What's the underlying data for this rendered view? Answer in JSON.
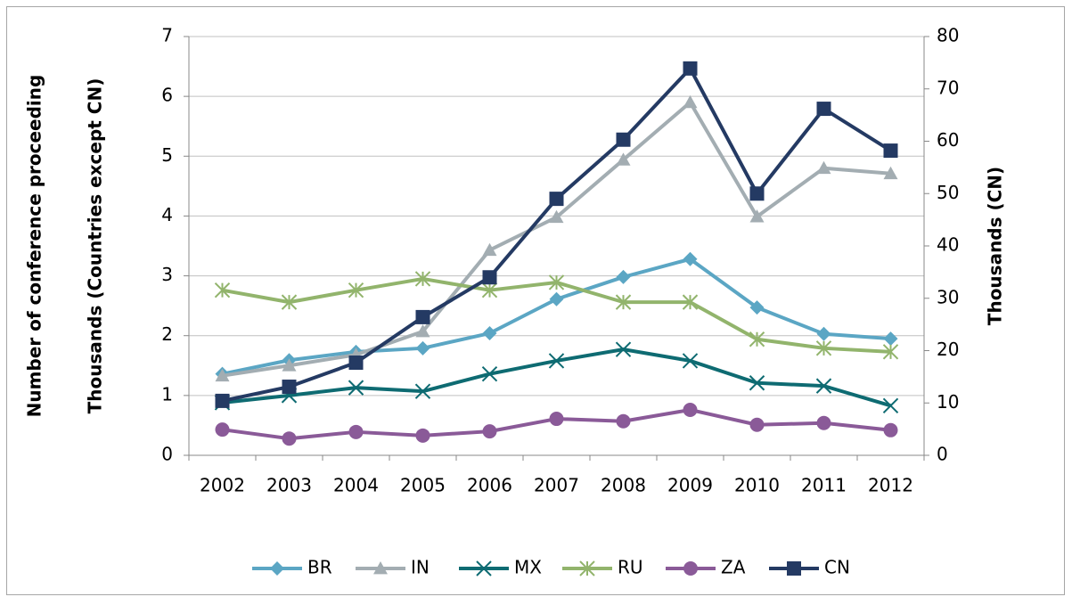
{
  "chart_data": {
    "type": "line",
    "y_label_lines": [
      "Number of conference proceeding",
      "Thousands (Countries except CN)"
    ],
    "y2_label": "Thousands (CN)",
    "categories": [
      "2002",
      "2003",
      "2004",
      "2005",
      "2006",
      "2007",
      "2008",
      "2009",
      "2010",
      "2011",
      "2012"
    ],
    "ylim": [
      0,
      7
    ],
    "yticks": [
      0,
      1,
      2,
      3,
      4,
      5,
      6,
      7
    ],
    "y2lim": [
      0,
      80
    ],
    "y2ticks": [
      0,
      10,
      20,
      30,
      40,
      50,
      60,
      70,
      80
    ],
    "grid": true,
    "legend": "bottom",
    "series": [
      {
        "name": "BR",
        "color": "#5ba6c4",
        "marker": "diamond",
        "values": [
          1.36,
          1.59,
          1.73,
          1.79,
          2.04,
          2.61,
          2.98,
          3.28,
          2.47,
          2.03,
          1.95
        ]
      },
      {
        "name": "IN",
        "color": "#a3adb2",
        "marker": "triangle",
        "values": [
          1.33,
          1.5,
          1.68,
          2.07,
          3.43,
          3.98,
          4.94,
          5.9,
          3.99,
          4.8,
          4.71
        ]
      },
      {
        "name": "MX",
        "color": "#0e6b72",
        "marker": "x",
        "values": [
          0.88,
          1.0,
          1.13,
          1.07,
          1.36,
          1.58,
          1.77,
          1.58,
          1.21,
          1.16,
          0.83
        ]
      },
      {
        "name": "RU",
        "color": "#92b46c",
        "marker": "star",
        "values": [
          2.76,
          2.56,
          2.76,
          2.95,
          2.76,
          2.89,
          2.56,
          2.56,
          1.94,
          1.79,
          1.73
        ]
      },
      {
        "name": "ZA",
        "color": "#8a5a98",
        "marker": "circle",
        "values": [
          0.43,
          0.28,
          0.39,
          0.33,
          0.4,
          0.61,
          0.57,
          0.76,
          0.51,
          0.54,
          0.42
        ]
      },
      {
        "name": "CN",
        "color": "#243a63",
        "marker": "square",
        "axis": "y2",
        "values": [
          10.4,
          13.1,
          17.7,
          26.4,
          34.0,
          49.0,
          60.3,
          73.9,
          50.0,
          66.2,
          58.2
        ]
      }
    ]
  }
}
